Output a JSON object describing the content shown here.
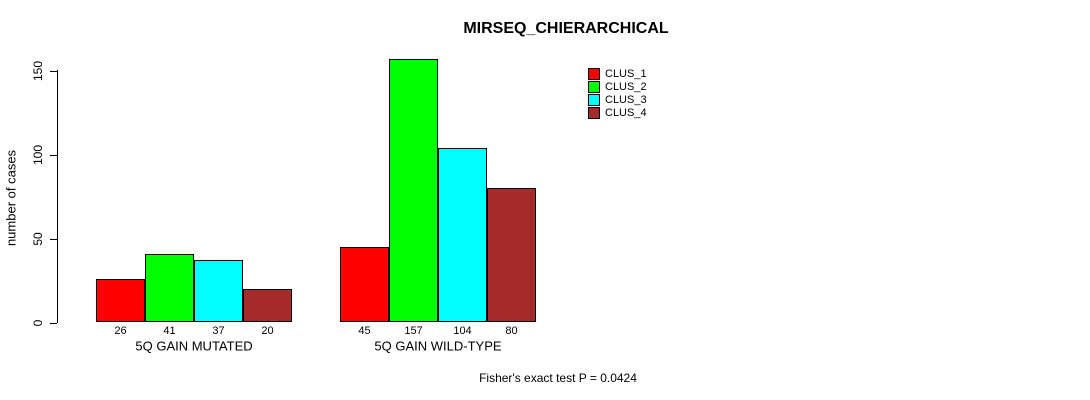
{
  "chart_data": {
    "type": "bar",
    "title": "MIRSEQ_CHIERARCHICAL",
    "ylabel": "number of cases",
    "xlabel": "",
    "categories": [
      "5Q GAIN MUTATED",
      "5Q GAIN WILD-TYPE"
    ],
    "series": [
      {
        "name": "CLUS_1",
        "color": "#ff0000",
        "values": [
          26,
          45
        ]
      },
      {
        "name": "CLUS_2",
        "color": "#00ff00",
        "values": [
          41,
          157
        ]
      },
      {
        "name": "CLUS_3",
        "color": "#00ffff",
        "values": [
          37,
          104
        ]
      },
      {
        "name": "CLUS_4",
        "color": "#a52a2a",
        "values": [
          20,
          80
        ]
      }
    ],
    "yticks": [
      0,
      50,
      100,
      150
    ],
    "ylim": [
      0,
      157
    ],
    "grid": false,
    "legend_position": "top-right",
    "value_labels_shown": true,
    "bar_border_color": "#000000",
    "annotation": "Fisher's exact test P = 0.0424"
  },
  "colors": {
    "background": "#ffffff",
    "axis": "#000000",
    "text": "#000000"
  }
}
